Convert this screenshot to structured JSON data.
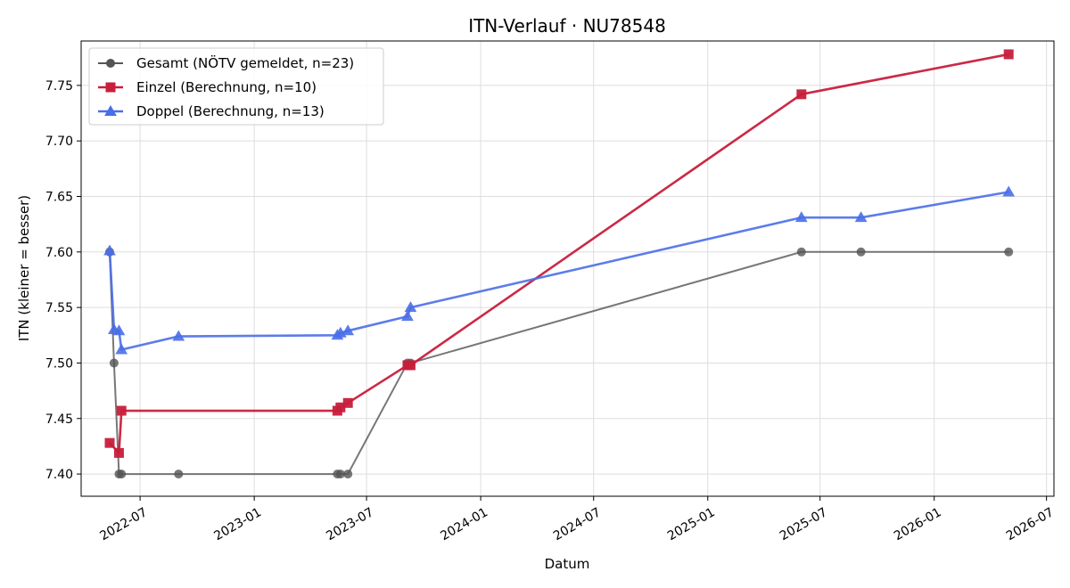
{
  "chart_data": {
    "type": "line",
    "title": "ITN-Verlauf · NU78548",
    "xlabel": "Datum",
    "ylabel": "ITN  (kleiner = besser)",
    "x_type": "date",
    "xlim": [
      "2022-03-28",
      "2026-07-13"
    ],
    "ylim": [
      7.38,
      7.79
    ],
    "x_ticks": [
      "2022-07-01",
      "2023-01-01",
      "2023-07-01",
      "2024-01-01",
      "2024-07-01",
      "2025-01-01",
      "2025-07-01",
      "2026-01-01",
      "2026-07-01"
    ],
    "x_tick_labels": [
      "2022-07",
      "2023-01",
      "2023-07",
      "2024-01",
      "2024-07",
      "2025-01",
      "2025-07",
      "2026-01",
      "2026-07"
    ],
    "y_ticks": [
      7.4,
      7.45,
      7.5,
      7.55,
      7.6,
      7.65,
      7.7,
      7.75
    ],
    "y_tick_labels": [
      "7.40",
      "7.45",
      "7.50",
      "7.55",
      "7.60",
      "7.65",
      "7.70",
      "7.75"
    ],
    "grid": true,
    "legend_position": "top-left",
    "series": [
      {
        "name": "Gesamt (NÖTV gemeldet, n=23)",
        "color": "#555555",
        "marker": "circle",
        "points": [
          {
            "x": "2022-05-13",
            "y": 7.6
          },
          {
            "x": "2022-05-20",
            "y": 7.5
          },
          {
            "x": "2022-05-28",
            "y": 7.4
          },
          {
            "x": "2022-06-01",
            "y": 7.4
          },
          {
            "x": "2022-09-01",
            "y": 7.4
          },
          {
            "x": "2023-05-15",
            "y": 7.4
          },
          {
            "x": "2023-05-20",
            "y": 7.4
          },
          {
            "x": "2023-06-01",
            "y": 7.4
          },
          {
            "x": "2023-09-05",
            "y": 7.5
          },
          {
            "x": "2023-09-10",
            "y": 7.5
          },
          {
            "x": "2025-06-01",
            "y": 7.6
          },
          {
            "x": "2025-09-05",
            "y": 7.6
          },
          {
            "x": "2026-05-01",
            "y": 7.6
          }
        ]
      },
      {
        "name": "Einzel (Berechnung, n=10)",
        "color": "#c81e3c",
        "marker": "square",
        "points": [
          {
            "x": "2022-05-13",
            "y": 7.428
          },
          {
            "x": "2022-05-28",
            "y": 7.419
          },
          {
            "x": "2022-06-01",
            "y": 7.457
          },
          {
            "x": "2023-05-15",
            "y": 7.457
          },
          {
            "x": "2023-05-20",
            "y": 7.46
          },
          {
            "x": "2023-06-01",
            "y": 7.464
          },
          {
            "x": "2023-09-05",
            "y": 7.498
          },
          {
            "x": "2023-09-10",
            "y": 7.498
          },
          {
            "x": "2025-06-01",
            "y": 7.742
          },
          {
            "x": "2026-05-01",
            "y": 7.778
          }
        ]
      },
      {
        "name": "Doppel (Berechnung, n=13)",
        "color": "#4a6ee8",
        "marker": "triangle",
        "points": [
          {
            "x": "2022-05-13",
            "y": 7.601
          },
          {
            "x": "2022-05-20",
            "y": 7.53
          },
          {
            "x": "2022-05-28",
            "y": 7.529
          },
          {
            "x": "2022-06-01",
            "y": 7.512
          },
          {
            "x": "2022-09-01",
            "y": 7.524
          },
          {
            "x": "2023-05-15",
            "y": 7.525
          },
          {
            "x": "2023-05-20",
            "y": 7.527
          },
          {
            "x": "2023-06-01",
            "y": 7.529
          },
          {
            "x": "2023-09-05",
            "y": 7.542
          },
          {
            "x": "2023-09-10",
            "y": 7.55
          },
          {
            "x": "2025-06-01",
            "y": 7.631
          },
          {
            "x": "2025-09-05",
            "y": 7.631
          },
          {
            "x": "2026-05-01",
            "y": 7.654
          }
        ]
      }
    ]
  }
}
